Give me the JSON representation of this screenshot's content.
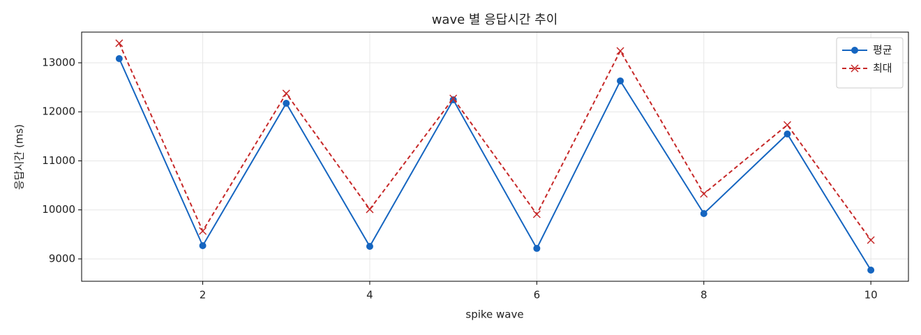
{
  "chart_data": {
    "type": "line",
    "title": "wave 별 응답시간 추이",
    "x_label": "spike wave",
    "y_label": "응답시간 (ms)",
    "x": [
      1,
      2,
      3,
      4,
      5,
      6,
      7,
      8,
      9,
      10
    ],
    "series": [
      {
        "name": "평균",
        "color": "#1565c0",
        "marker": "circle",
        "linestyle": "solid",
        "values": [
          13085,
          9270,
          12174,
          9256,
          12245,
          9214,
          12630,
          9925,
          11548,
          8772
        ]
      },
      {
        "name": "최대",
        "color": "#c62828",
        "marker": "x",
        "linestyle": "dashed",
        "values": [
          13399,
          9569,
          12374,
          10011,
          12274,
          9911,
          13242,
          10327,
          11733,
          9384
        ]
      }
    ],
    "xlim": [
      0.55,
      10.45
    ],
    "xticks": [
      2,
      4,
      6,
      8,
      10
    ],
    "ylim": [
      8544,
      13626
    ],
    "yticks": [
      9000,
      10000,
      11000,
      12000,
      13000
    ],
    "grid": true,
    "legend": "upper right"
  }
}
